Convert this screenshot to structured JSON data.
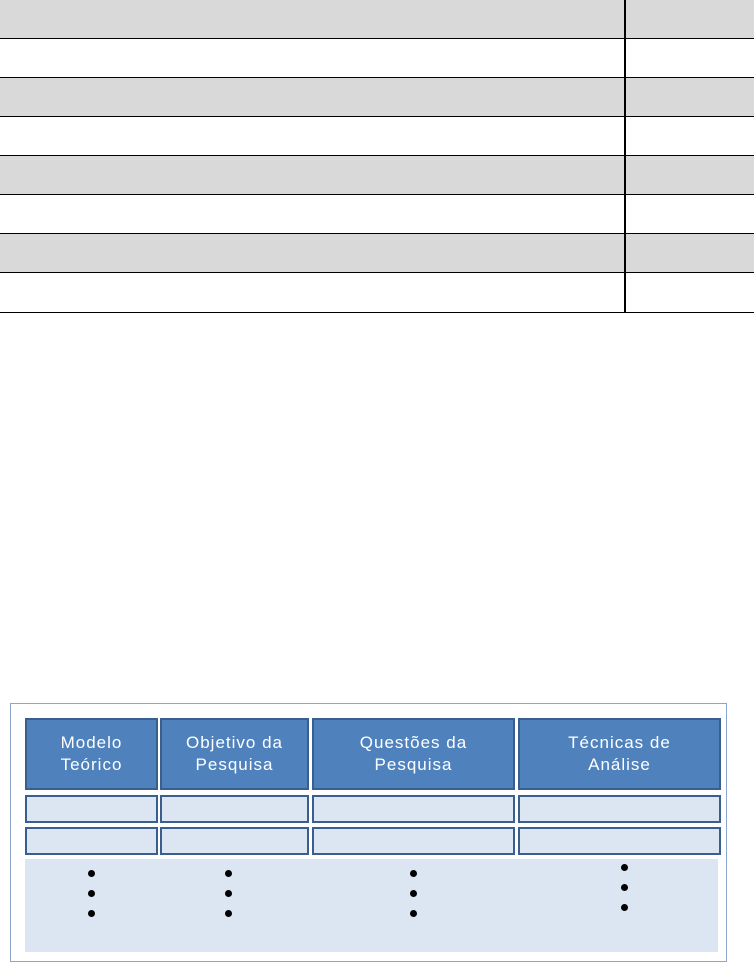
{
  "table": {
    "rows": 8,
    "shading": [
      "#d9d9d9",
      "#ffffff"
    ]
  },
  "diagram": {
    "headers": [
      "Modelo\nTeórico",
      "Objetivo da\nPesquisa",
      "Questões da\nPesquisa",
      "Técnicas de\nAnálise"
    ],
    "colors": {
      "header": "#4f81bd",
      "cell": "#dce6f2",
      "border": "#3a5f8f"
    }
  }
}
